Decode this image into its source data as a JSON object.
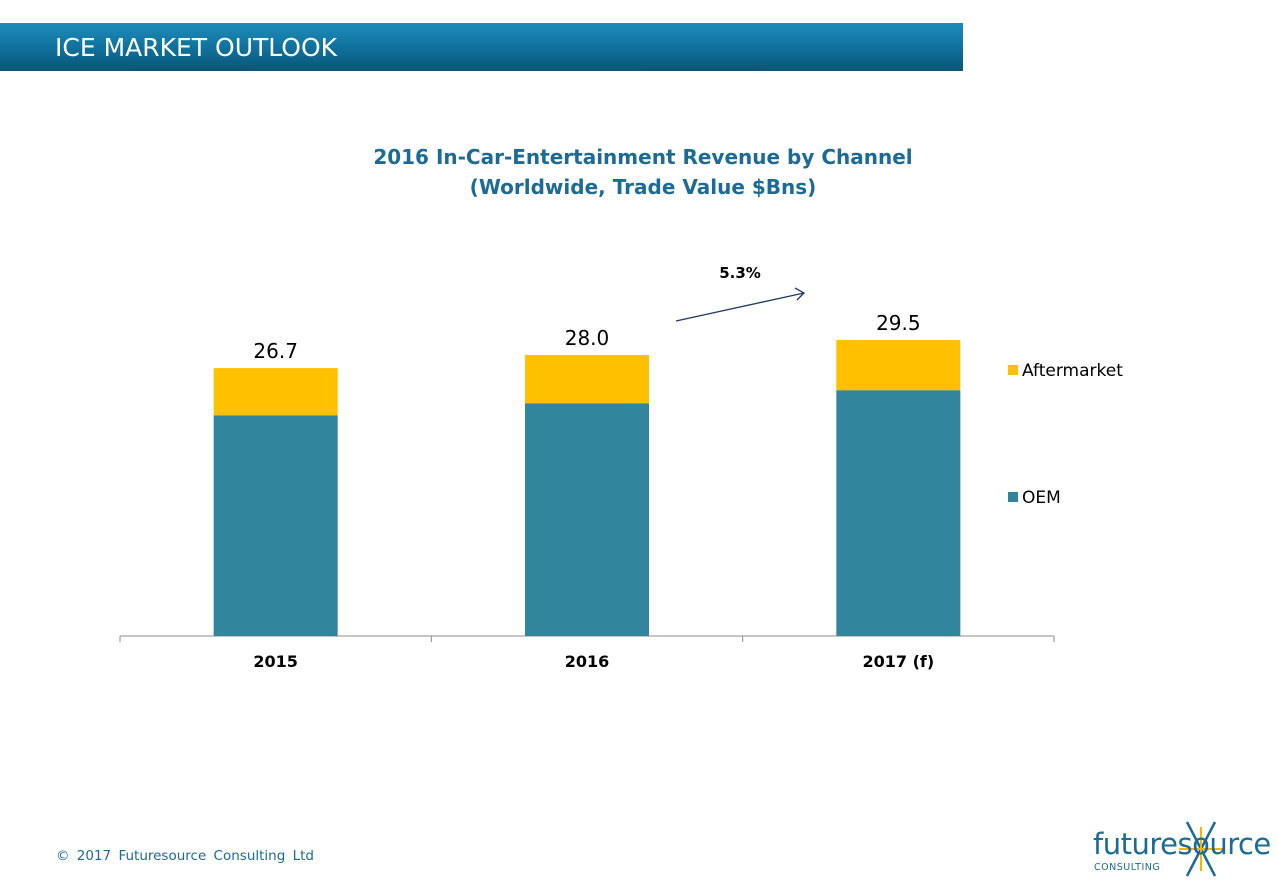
{
  "header": {
    "title": "ICE MARKET OUTLOOK"
  },
  "chart_data": {
    "type": "bar",
    "stacked": true,
    "title": "2016 In-Car-Entertainment Revenue by Channel",
    "subtitle": "(Worldwide, Trade Value $Bns)",
    "categories": [
      "2015",
      "2016",
      "2017 (f)"
    ],
    "series": [
      {
        "name": "OEM",
        "values": [
          22.0,
          23.2,
          24.5
        ],
        "color": "#31859c"
      },
      {
        "name": "Aftermarket",
        "values": [
          4.7,
          4.8,
          5.0
        ],
        "color": "#ffc000"
      }
    ],
    "totals": [
      "26.7",
      "28.0",
      "29.5"
    ],
    "annotation": {
      "text": "5.3%"
    },
    "legend_placement": "right",
    "ylim": [
      0,
      30
    ],
    "grid": false
  },
  "footer": {
    "copyright": "© 2017 Futuresource Consulting Ltd"
  },
  "logo": {
    "name": "futuresource",
    "subtitle": "CONSULTING",
    "brand_color": "#1b6b96"
  }
}
